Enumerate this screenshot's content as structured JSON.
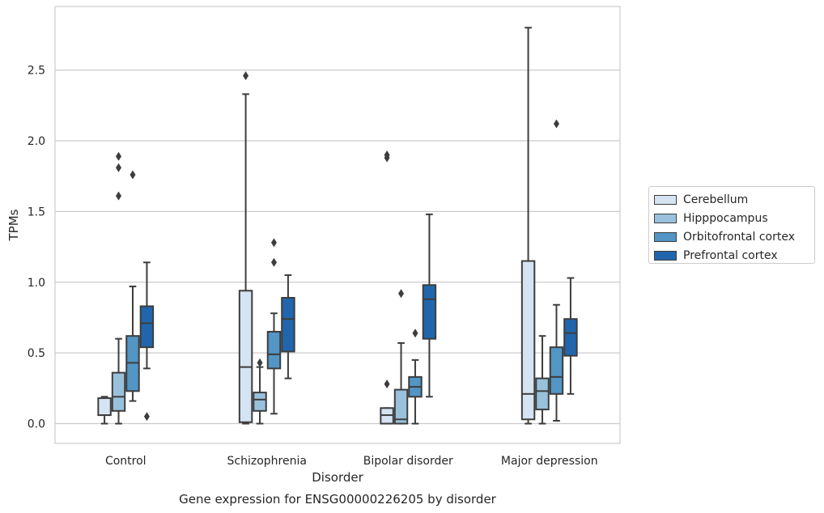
{
  "chart_data": {
    "type": "box",
    "title": "Gene expression for ENSG00000226205 by disorder",
    "xlabel": "Disorder",
    "ylabel": "TPMs",
    "ylim": [
      -0.14,
      2.95
    ],
    "yticks": [
      "0.0",
      "0.5",
      "1.0",
      "1.5",
      "2.0",
      "2.5"
    ],
    "grid": "horizontal",
    "legend_position": "right",
    "categories": [
      "Control",
      "Schizophrenia",
      "Bipolar disorder",
      "Major depression"
    ],
    "series": [
      {
        "name": "Cerebellum",
        "color": "#d5e4f3",
        "boxes": [
          {
            "whislo": 0.0,
            "q1": 0.06,
            "med": 0.06,
            "q3": 0.18,
            "whishi": 0.19,
            "fliers": []
          },
          {
            "whislo": 0.0,
            "q1": 0.01,
            "med": 0.4,
            "q3": 0.94,
            "whishi": 2.33,
            "fliers": [
              2.46
            ]
          },
          {
            "whislo": 0.0,
            "q1": 0.0,
            "med": 0.06,
            "q3": 0.11,
            "whishi": 0.11,
            "fliers": [
              0.28,
              1.88,
              1.9
            ]
          },
          {
            "whislo": 0.0,
            "q1": 0.03,
            "med": 0.21,
            "q3": 1.15,
            "whishi": 2.8,
            "fliers": []
          }
        ]
      },
      {
        "name": "Hipppocampus",
        "color": "#9ac1dc",
        "boxes": [
          {
            "whislo": 0.0,
            "q1": 0.09,
            "med": 0.19,
            "q3": 0.36,
            "whishi": 0.6,
            "fliers": [
              1.61,
              1.81,
              1.89
            ]
          },
          {
            "whislo": 0.0,
            "q1": 0.09,
            "med": 0.17,
            "q3": 0.22,
            "whishi": 0.4,
            "fliers": [
              0.43
            ]
          },
          {
            "whislo": 0.0,
            "q1": 0.0,
            "med": 0.03,
            "q3": 0.24,
            "whishi": 0.57,
            "fliers": [
              0.92
            ]
          },
          {
            "whislo": 0.0,
            "q1": 0.1,
            "med": 0.23,
            "q3": 0.32,
            "whishi": 0.62,
            "fliers": []
          }
        ]
      },
      {
        "name": "Orbitofrontal cortex",
        "color": "#5395c4",
        "boxes": [
          {
            "whislo": 0.16,
            "q1": 0.23,
            "med": 0.43,
            "q3": 0.62,
            "whishi": 0.97,
            "fliers": [
              1.76
            ]
          },
          {
            "whislo": 0.07,
            "q1": 0.39,
            "med": 0.49,
            "q3": 0.65,
            "whishi": 0.78,
            "fliers": [
              1.14,
              1.28
            ]
          },
          {
            "whislo": 0.0,
            "q1": 0.19,
            "med": 0.26,
            "q3": 0.33,
            "whishi": 0.45,
            "fliers": [
              0.64
            ]
          },
          {
            "whislo": 0.02,
            "q1": 0.21,
            "med": 0.33,
            "q3": 0.54,
            "whishi": 0.84,
            "fliers": [
              2.12
            ]
          }
        ]
      },
      {
        "name": "Prefrontal cortex",
        "color": "#2166ac",
        "boxes": [
          {
            "whislo": 0.39,
            "q1": 0.54,
            "med": 0.71,
            "q3": 0.83,
            "whishi": 1.14,
            "fliers": [
              0.05
            ]
          },
          {
            "whislo": 0.32,
            "q1": 0.51,
            "med": 0.74,
            "q3": 0.89,
            "whishi": 1.05,
            "fliers": []
          },
          {
            "whislo": 0.19,
            "q1": 0.6,
            "med": 0.88,
            "q3": 0.98,
            "whishi": 1.48,
            "fliers": []
          },
          {
            "whislo": 0.21,
            "q1": 0.48,
            "med": 0.64,
            "q3": 0.74,
            "whishi": 1.03,
            "fliers": []
          }
        ]
      }
    ]
  }
}
